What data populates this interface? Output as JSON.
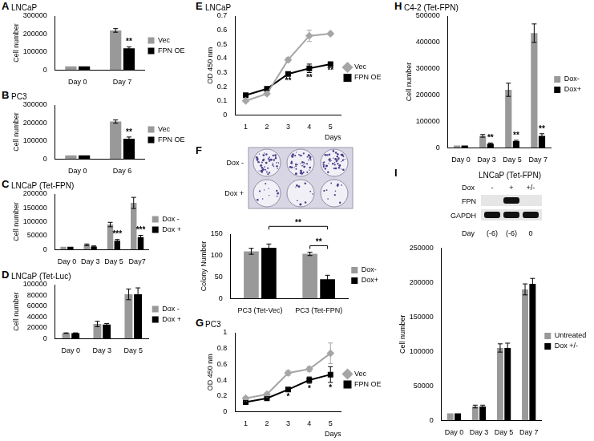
{
  "chart_data": [
    {
      "panel": "A",
      "type": "bar",
      "title": "LNCaP",
      "y_label": "Cell number",
      "categories": [
        "Day 0",
        "Day 7"
      ],
      "series": [
        {
          "name": "Vec",
          "color": "#999999",
          "values": [
            20000,
            220000
          ],
          "errors": [
            0,
            10000
          ]
        },
        {
          "name": "FPN OE",
          "color": "#000000",
          "values": [
            20000,
            120000
          ],
          "errors": [
            0,
            8000
          ]
        }
      ],
      "ylim": [
        0,
        300000
      ],
      "yticks": [
        0,
        100000,
        200000,
        300000
      ],
      "grid": false,
      "legend": "right",
      "annotations": [
        {
          "category": "Day 7",
          "series": "FPN OE",
          "text": "**"
        }
      ]
    },
    {
      "panel": "B",
      "type": "bar",
      "title": "PC3",
      "y_label": "Cell number",
      "categories": [
        "Day 0",
        "Day 6"
      ],
      "series": [
        {
          "name": "Vec",
          "color": "#999999",
          "values": [
            20000,
            208000
          ],
          "errors": [
            0,
            9000
          ]
        },
        {
          "name": "FPN OE",
          "color": "#000000",
          "values": [
            20000,
            112000
          ],
          "errors": [
            0,
            10000
          ]
        }
      ],
      "ylim": [
        0,
        300000
      ],
      "yticks": [
        0,
        100000,
        200000,
        300000
      ],
      "grid": false,
      "legend": "right",
      "annotations": [
        {
          "category": "Day 6",
          "series": "FPN OE",
          "text": "**"
        }
      ]
    },
    {
      "panel": "C",
      "type": "bar",
      "title": "LNCaP (Tet-FPN)",
      "y_label": "Cell number",
      "categories": [
        "Day 0",
        "Day 3",
        "Day 5",
        "Day7"
      ],
      "series": [
        {
          "name": "Dox -",
          "color": "#999999",
          "values": [
            10000,
            17000,
            90000,
            168000
          ],
          "errors": [
            0,
            3000,
            8000,
            20000
          ]
        },
        {
          "name": "Dox +",
          "color": "#000000",
          "values": [
            10000,
            11000,
            32000,
            45000
          ],
          "errors": [
            0,
            2000,
            4000,
            6000
          ]
        }
      ],
      "ylim": [
        0,
        200000
      ],
      "yticks": [
        0,
        50000,
        100000,
        150000,
        200000
      ],
      "grid": false,
      "legend": "right",
      "annotations": [
        {
          "category": "Day 5",
          "series": "Dox +",
          "text": "***"
        },
        {
          "category": "Day7",
          "series": "Dox +",
          "text": "***"
        }
      ]
    },
    {
      "panel": "D",
      "type": "bar",
      "title": "LNCaP (Tet-Luc)",
      "y_label": "Cell number",
      "categories": [
        "Day 0",
        "Day 3",
        "Day 5"
      ],
      "series": [
        {
          "name": "Dox -",
          "color": "#999999",
          "values": [
            10000,
            27000,
            82000
          ],
          "errors": [
            500,
            5000,
            10000
          ]
        },
        {
          "name": "Dox +",
          "color": "#000000",
          "values": [
            10000,
            26000,
            82000
          ],
          "errors": [
            500,
            2000,
            12000
          ]
        }
      ],
      "ylim": [
        0,
        100000
      ],
      "yticks": [
        0,
        20000,
        40000,
        60000,
        80000,
        100000
      ],
      "grid": false,
      "legend": "right"
    },
    {
      "panel": "E",
      "type": "line",
      "title": "LNCaP",
      "y_label": "OD 450 nm",
      "x_label": "Days",
      "categories": [
        "1",
        "2",
        "3",
        "4",
        "5"
      ],
      "series": [
        {
          "name": "Vec",
          "color": "#a6a6a6",
          "marker": "diamond",
          "values": [
            0.1,
            0.15,
            0.39,
            0.56,
            0.575
          ],
          "errors": [
            0.01,
            0.01,
            0.015,
            0.04,
            0.01
          ]
        },
        {
          "name": "FPN OE",
          "color": "#000000",
          "marker": "square",
          "values": [
            0.14,
            0.185,
            0.29,
            0.33,
            0.36
          ],
          "errors": [
            0.01,
            0.01,
            0.01,
            0.03,
            0.01
          ]
        }
      ],
      "ylim": [
        0,
        0.7
      ],
      "yticks": [
        0,
        0.1,
        0.2,
        0.3,
        0.4,
        0.5,
        0.6,
        0.7
      ],
      "grid": false,
      "legend": "right",
      "annotations": [
        {
          "category": "3",
          "series": "FPN OE",
          "text": "**"
        },
        {
          "category": "4",
          "series": "FPN OE",
          "text": "**"
        },
        {
          "category": "5",
          "series": "FPN OE",
          "text": "**"
        }
      ]
    },
    {
      "type": "bar",
      "y_label": "Colony Number",
      "categories": [
        "PC3 (Tet-Vec)",
        "PC3 (Tet-FPN)"
      ],
      "series": [
        {
          "name": "Dox-",
          "color": "#999999",
          "values": [
            110,
            104
          ],
          "errors": [
            7,
            4
          ]
        },
        {
          "name": "Dox+",
          "color": "#000000",
          "values": [
            118,
            45
          ],
          "errors": [
            9,
            9
          ]
        }
      ],
      "ylim": [
        0,
        150
      ],
      "yticks": [
        0,
        50,
        100,
        150
      ],
      "grid": false,
      "legend": "right",
      "brackets": [
        {
          "from": {
            "category": "PC3 (Tet-FPN)",
            "series": "Dox-"
          },
          "to": {
            "category": "PC3 (Tet-FPN)",
            "series": "Dox+"
          },
          "text": "**"
        },
        {
          "from": {
            "category": "PC3 (Tet-Vec)",
            "series": "Dox+"
          },
          "to": {
            "category": "PC3 (Tet-FPN)",
            "series": "Dox+"
          },
          "text": "**"
        }
      ]
    },
    {
      "panel": "G",
      "type": "line",
      "title": "PC3",
      "y_label": "OD 450 nm",
      "x_label": "Days",
      "categories": [
        "1",
        "2",
        "3",
        "4",
        "5"
      ],
      "series": [
        {
          "name": "Vec",
          "color": "#a6a6a6",
          "marker": "diamond",
          "values": [
            0.17,
            0.22,
            0.49,
            0.54,
            0.74
          ],
          "errors": [
            0.02,
            0.02,
            0.03,
            0.03,
            0.13
          ]
        },
        {
          "name": "FPN OE",
          "color": "#000000",
          "marker": "square",
          "values": [
            0.12,
            0.17,
            0.28,
            0.4,
            0.47
          ],
          "errors": [
            0.02,
            0.02,
            0.02,
            0.04,
            0.1
          ]
        }
      ],
      "ylim": [
        0,
        1
      ],
      "yticks": [
        0,
        0.2,
        0.4,
        0.6,
        0.8,
        1
      ],
      "grid": false,
      "legend": "right",
      "annotations": [
        {
          "category": "3",
          "series": "FPN OE",
          "text": "*"
        },
        {
          "category": "4",
          "series": "FPN OE",
          "text": "*"
        },
        {
          "category": "5",
          "series": "FPN OE",
          "text": "*"
        }
      ]
    },
    {
      "panel": "H",
      "type": "bar",
      "title": "C4-2 (Tet-FPN)",
      "y_label": "Cell number",
      "categories": [
        "Day 0",
        "Day 3",
        "Day 5",
        "Day 7"
      ],
      "series": [
        {
          "name": "Dox-",
          "color": "#999999",
          "values": [
            8000,
            45000,
            220000,
            435000
          ],
          "errors": [
            0,
            5000,
            25000,
            35000
          ]
        },
        {
          "name": "Dox+",
          "color": "#000000",
          "values": [
            8000,
            15000,
            25000,
            45000
          ],
          "errors": [
            0,
            3000,
            3000,
            8000
          ]
        }
      ],
      "ylim": [
        0,
        500000
      ],
      "yticks": [
        0,
        100000,
        200000,
        300000,
        400000,
        500000
      ],
      "grid": false,
      "legend": "right",
      "annotations": [
        {
          "category": "Day 3",
          "series": "Dox+",
          "text": "**"
        },
        {
          "category": "Day 5",
          "series": "Dox+",
          "text": "**"
        },
        {
          "category": "Day 7",
          "series": "Dox+",
          "text": "**"
        }
      ]
    },
    {
      "type": "bar",
      "y_label": "Cell number",
      "categories": [
        "Day 0",
        "Day 3",
        "Day 5",
        "Day 7"
      ],
      "series": [
        {
          "name": "Untreated",
          "color": "#999999",
          "values": [
            10000,
            20000,
            105000,
            190000
          ],
          "errors": [
            0,
            2000,
            6000,
            8000
          ]
        },
        {
          "name": "Dox +/-",
          "color": "#000000",
          "values": [
            10000,
            20000,
            105000,
            198000
          ],
          "errors": [
            0,
            2000,
            7000,
            8000
          ]
        }
      ],
      "ylim": [
        0,
        250000
      ],
      "yticks": [
        0,
        50000,
        100000,
        150000,
        200000,
        250000
      ],
      "grid": false,
      "legend": "right"
    }
  ],
  "colony_image": {
    "panel": "F",
    "rows": [
      "Dox -",
      "Dox +"
    ],
    "wells_per_row": 3
  },
  "blot": {
    "panel": "I",
    "title": "LNCaP (Tet-FPN)",
    "row_header": "Dox",
    "lanes": [
      "-",
      "+",
      "+/-"
    ],
    "bands": [
      {
        "label": "FPN",
        "present": [
          false,
          true,
          false
        ]
      },
      {
        "label": "GAPDH",
        "present": [
          true,
          true,
          true
        ]
      }
    ],
    "day_label": "Day",
    "days": [
      "(-6)",
      "(-6)",
      "0"
    ]
  }
}
